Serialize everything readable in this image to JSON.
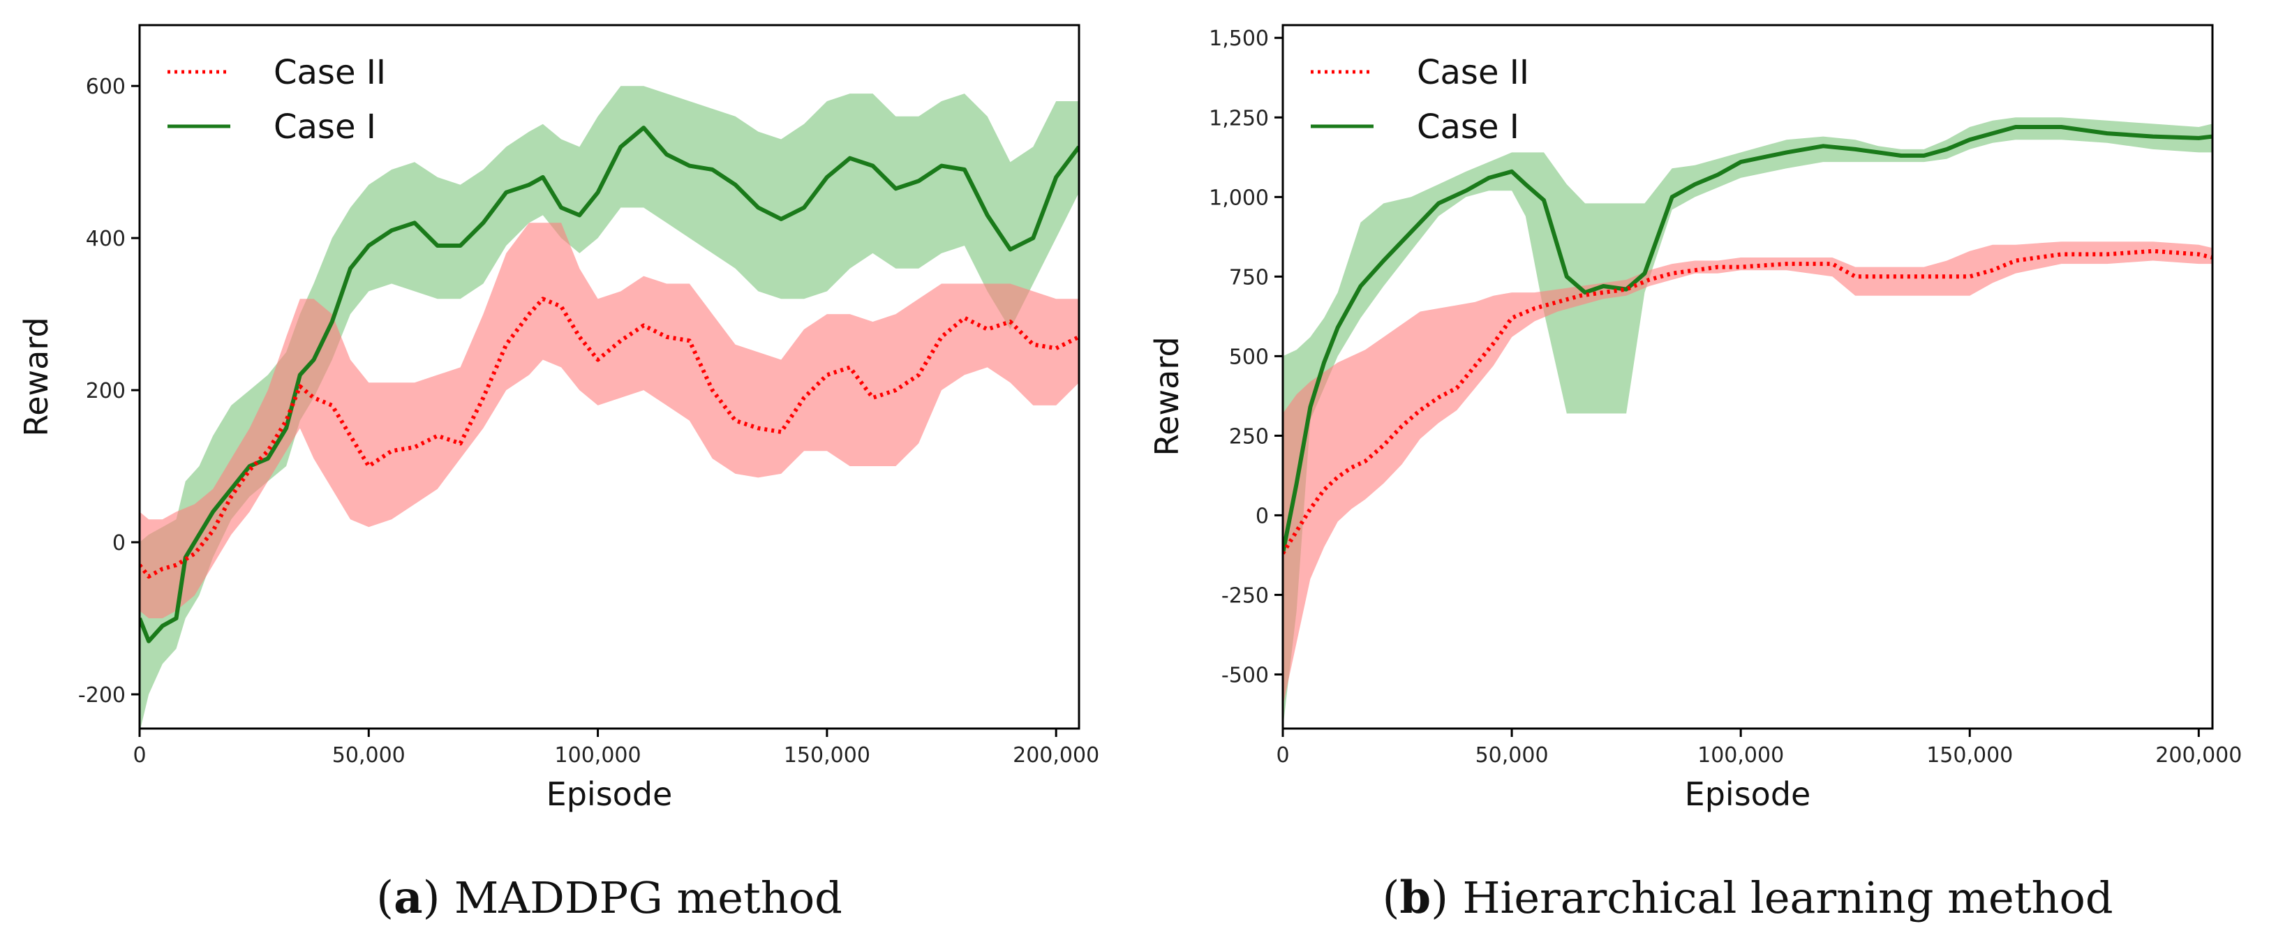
{
  "colors": {
    "case1_line": "#1a7a1a",
    "case1_band": "#6fbf6f",
    "case2_line": "#ff0000",
    "case2_band": "#ff7f7f"
  },
  "chart_data": [
    {
      "type": "line",
      "panel": "a",
      "caption_letter": "a",
      "caption_text": "MADDPG method",
      "xlabel": "Episode",
      "ylabel": "Reward",
      "xlim": [
        0,
        205000
      ],
      "ylim": [
        -245,
        680
      ],
      "xticks": [
        0,
        50000,
        100000,
        150000,
        200000
      ],
      "xtick_labels": [
        "0",
        "50,000",
        "100,000",
        "150,000",
        "200,000"
      ],
      "yticks": [
        -200,
        0,
        200,
        400,
        600
      ],
      "ytick_labels": [
        "-200",
        "0",
        "200",
        "400",
        "600"
      ],
      "legend_position": "top-left",
      "series": [
        {
          "name": "Case II",
          "style": "dotted",
          "x": [
            0,
            2000,
            5000,
            8000,
            12000,
            16000,
            20000,
            24000,
            28000,
            32000,
            35000,
            38000,
            42000,
            46000,
            50000,
            55000,
            60000,
            65000,
            70000,
            75000,
            80000,
            85000,
            88000,
            92000,
            96000,
            100000,
            105000,
            110000,
            115000,
            120000,
            125000,
            130000,
            135000,
            140000,
            145000,
            150000,
            155000,
            160000,
            165000,
            170000,
            175000,
            180000,
            185000,
            190000,
            195000,
            200000,
            205000
          ],
          "values": [
            -30,
            -45,
            -35,
            -30,
            -15,
            15,
            60,
            95,
            120,
            160,
            205,
            190,
            180,
            140,
            100,
            120,
            125,
            140,
            130,
            190,
            260,
            300,
            320,
            310,
            270,
            240,
            265,
            285,
            270,
            265,
            200,
            160,
            150,
            145,
            190,
            220,
            230,
            190,
            200,
            220,
            270,
            295,
            280,
            290,
            260,
            255,
            270
          ],
          "lower": [
            -90,
            -100,
            -100,
            -90,
            -70,
            -30,
            10,
            40,
            80,
            120,
            150,
            110,
            70,
            30,
            20,
            30,
            50,
            70,
            110,
            150,
            200,
            220,
            240,
            230,
            200,
            180,
            190,
            200,
            180,
            160,
            110,
            90,
            85,
            90,
            120,
            120,
            100,
            100,
            100,
            130,
            200,
            220,
            230,
            210,
            180,
            180,
            210
          ],
          "upper": [
            40,
            30,
            30,
            40,
            50,
            70,
            110,
            150,
            200,
            270,
            320,
            320,
            300,
            240,
            210,
            210,
            210,
            220,
            230,
            300,
            380,
            420,
            420,
            420,
            360,
            320,
            330,
            350,
            340,
            340,
            300,
            260,
            250,
            240,
            280,
            300,
            300,
            290,
            300,
            320,
            340,
            340,
            340,
            340,
            330,
            320,
            320
          ]
        },
        {
          "name": "Case I",
          "style": "solid",
          "x": [
            0,
            2000,
            5000,
            8000,
            10000,
            13000,
            16000,
            20000,
            24000,
            28000,
            32000,
            35000,
            38000,
            42000,
            46000,
            50000,
            55000,
            60000,
            65000,
            70000,
            75000,
            80000,
            85000,
            88000,
            92000,
            96000,
            100000,
            105000,
            110000,
            115000,
            120000,
            125000,
            130000,
            135000,
            140000,
            145000,
            150000,
            155000,
            160000,
            165000,
            170000,
            175000,
            180000,
            185000,
            190000,
            195000,
            200000,
            205000
          ],
          "values": [
            -100,
            -130,
            -110,
            -100,
            -20,
            10,
            40,
            70,
            100,
            110,
            150,
            220,
            240,
            290,
            360,
            390,
            410,
            420,
            390,
            390,
            420,
            460,
            470,
            480,
            440,
            430,
            460,
            520,
            545,
            510,
            495,
            490,
            470,
            440,
            425,
            440,
            480,
            505,
            495,
            465,
            475,
            495,
            490,
            430,
            385,
            400,
            480,
            520
          ],
          "lower": [
            -250,
            -200,
            -160,
            -140,
            -100,
            -70,
            -20,
            30,
            60,
            80,
            100,
            160,
            190,
            240,
            300,
            330,
            340,
            330,
            320,
            320,
            340,
            390,
            420,
            430,
            400,
            380,
            400,
            440,
            440,
            420,
            400,
            380,
            360,
            330,
            320,
            320,
            330,
            360,
            380,
            360,
            360,
            380,
            390,
            330,
            280,
            340,
            400,
            460
          ],
          "upper": [
            0,
            10,
            20,
            30,
            80,
            100,
            140,
            180,
            200,
            220,
            250,
            300,
            340,
            400,
            440,
            470,
            490,
            500,
            480,
            470,
            490,
            520,
            540,
            550,
            530,
            520,
            560,
            600,
            600,
            590,
            580,
            570,
            560,
            540,
            530,
            550,
            580,
            590,
            590,
            560,
            560,
            580,
            590,
            560,
            500,
            520,
            580,
            580
          ]
        }
      ]
    },
    {
      "type": "line",
      "panel": "b",
      "caption_letter": "b",
      "caption_text": "Hierarchical learning method",
      "xlabel": "Episode",
      "ylabel": "Reward",
      "xlim": [
        0,
        203000
      ],
      "ylim": [
        -670,
        1540
      ],
      "xticks": [
        0,
        50000,
        100000,
        150000,
        200000
      ],
      "xtick_labels": [
        "0",
        "50,000",
        "100,000",
        "150,000",
        "200,000"
      ],
      "yticks": [
        -500,
        -250,
        0,
        250,
        500,
        750,
        1000,
        1250,
        1500
      ],
      "ytick_labels": [
        "-500",
        "-250",
        "0",
        "250",
        "500",
        "750",
        "1,000",
        "1,250",
        "1,500"
      ],
      "legend_position": "top-left",
      "series": [
        {
          "name": "Case II",
          "style": "dotted",
          "x": [
            0,
            3000,
            6000,
            9000,
            12000,
            15000,
            18000,
            22000,
            26000,
            30000,
            34000,
            38000,
            42000,
            46000,
            50000,
            55000,
            60000,
            65000,
            70000,
            75000,
            80000,
            85000,
            90000,
            95000,
            100000,
            110000,
            120000,
            125000,
            130000,
            140000,
            145000,
            150000,
            155000,
            160000,
            170000,
            180000,
            190000,
            200000,
            203000
          ],
          "values": [
            -120,
            -50,
            20,
            80,
            120,
            150,
            170,
            220,
            280,
            330,
            370,
            400,
            470,
            540,
            620,
            650,
            670,
            690,
            700,
            710,
            740,
            760,
            770,
            780,
            780,
            790,
            790,
            750,
            750,
            750,
            750,
            750,
            770,
            800,
            820,
            820,
            830,
            820,
            810
          ],
          "lower": [
            -600,
            -400,
            -200,
            -100,
            -20,
            20,
            50,
            100,
            160,
            240,
            290,
            330,
            400,
            470,
            560,
            610,
            640,
            660,
            680,
            690,
            720,
            740,
            760,
            760,
            770,
            770,
            750,
            690,
            690,
            690,
            690,
            690,
            730,
            760,
            790,
            790,
            800,
            790,
            790
          ],
          "upper": [
            320,
            380,
            420,
            450,
            480,
            500,
            520,
            560,
            600,
            640,
            650,
            660,
            670,
            690,
            700,
            700,
            710,
            720,
            730,
            740,
            770,
            790,
            800,
            800,
            810,
            810,
            810,
            780,
            780,
            780,
            800,
            830,
            850,
            850,
            860,
            860,
            860,
            850,
            840
          ]
        },
        {
          "name": "Case I",
          "style": "solid",
          "x": [
            0,
            3000,
            6000,
            9000,
            12000,
            17000,
            22000,
            28000,
            34000,
            40000,
            45000,
            50000,
            53000,
            57000,
            62000,
            66000,
            70000,
            75000,
            79000,
            85000,
            90000,
            95000,
            100000,
            110000,
            118000,
            125000,
            130000,
            135000,
            140000,
            145000,
            150000,
            155000,
            160000,
            170000,
            180000,
            190000,
            200000,
            203000
          ],
          "values": [
            -120,
            100,
            340,
            480,
            590,
            720,
            800,
            890,
            980,
            1020,
            1060,
            1080,
            1040,
            990,
            750,
            700,
            720,
            710,
            760,
            1000,
            1040,
            1070,
            1110,
            1140,
            1160,
            1150,
            1140,
            1130,
            1130,
            1150,
            1180,
            1200,
            1220,
            1220,
            1200,
            1190,
            1185,
            1190
          ],
          "lower": [
            -670,
            -300,
            300,
            400,
            500,
            620,
            720,
            830,
            940,
            1000,
            1020,
            1020,
            940,
            640,
            320,
            320,
            320,
            320,
            700,
            960,
            1000,
            1030,
            1060,
            1090,
            1110,
            1110,
            1110,
            1110,
            1110,
            1120,
            1150,
            1170,
            1180,
            1180,
            1170,
            1150,
            1140,
            1140
          ],
          "upper": [
            500,
            520,
            560,
            620,
            700,
            920,
            980,
            1000,
            1040,
            1080,
            1110,
            1140,
            1140,
            1140,
            1040,
            980,
            980,
            980,
            980,
            1090,
            1100,
            1120,
            1140,
            1180,
            1190,
            1180,
            1160,
            1150,
            1150,
            1180,
            1220,
            1240,
            1250,
            1250,
            1240,
            1230,
            1220,
            1230
          ]
        }
      ]
    }
  ]
}
